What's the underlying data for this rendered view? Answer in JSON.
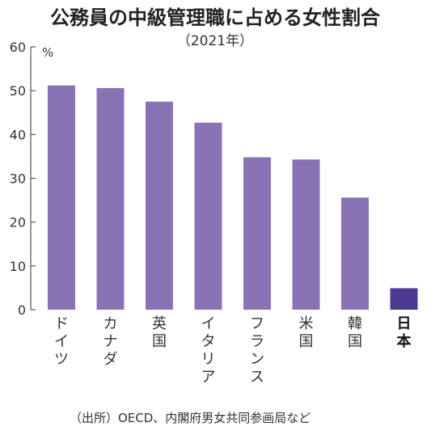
{
  "chart_data": {
    "type": "bar",
    "title": "公務員の中級管理職に占める女性割合",
    "subtitle": "（2021年）",
    "unit": "%",
    "source": "（出所）OECD、内閣府男女共同参画局など",
    "categories": [
      "ドイツ",
      "カナダ",
      "英国",
      "イタリア",
      "フランス",
      "米国",
      "韓国",
      "日本"
    ],
    "values": [
      51.2,
      50.6,
      47.5,
      42.7,
      34.8,
      34.3,
      25.6,
      4.9
    ],
    "highlight_category": "日本",
    "ylim": [
      0,
      60
    ],
    "yticks": [
      0,
      10,
      20,
      30,
      40,
      50,
      60
    ],
    "grid": false,
    "colors": {
      "bar": "#8a73b4",
      "highlight_bar": "#4b3a8f",
      "axis": "#555555"
    }
  }
}
